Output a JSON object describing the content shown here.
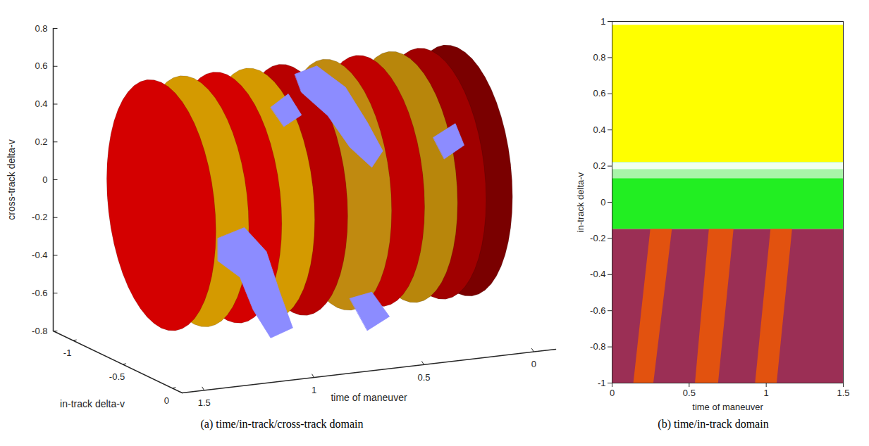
{
  "chart_data": [
    {
      "type": "isosurface",
      "caption": "(a) time/in-track/cross-track domain",
      "x_label": "time of maneuver",
      "y_label": "in-track delta-v",
      "z_label": "cross-track delta-v",
      "xlim": [
        -0.1,
        1.6
      ],
      "xticks": [
        0,
        0.5,
        1,
        1.5
      ],
      "ylim": [
        -1.2,
        0.1
      ],
      "yticks": [
        -1,
        -0.5,
        0
      ],
      "zlim": [
        -0.8,
        0.8
      ],
      "zticks": [
        -0.8,
        -0.6,
        -0.4,
        -0.2,
        0,
        0.2,
        0.4,
        0.6,
        0.8
      ],
      "surfaces": [
        {
          "time": 0.05,
          "in_track": -0.55,
          "cross_track": 0,
          "in_track_radius": 0.55,
          "cross_track_radius": 0.65,
          "color": "#7a0000"
        },
        {
          "time": 0.17,
          "in_track": -0.55,
          "cross_track": 0,
          "in_track_radius": 0.55,
          "cross_track_radius": 0.65,
          "color": "#a00000"
        },
        {
          "time": 0.3,
          "in_track": -0.55,
          "cross_track": 0,
          "in_track_radius": 0.55,
          "cross_track_radius": 0.65,
          "color": "#b8860b"
        },
        {
          "time": 0.45,
          "in_track": -0.55,
          "cross_track": 0,
          "in_track_radius": 0.55,
          "cross_track_radius": 0.65,
          "color": "#c00000"
        },
        {
          "time": 0.6,
          "in_track": -0.55,
          "cross_track": 0,
          "in_track_radius": 0.55,
          "cross_track_radius": 0.65,
          "color": "#c08a10"
        },
        {
          "time": 0.8,
          "in_track": -0.55,
          "cross_track": 0,
          "in_track_radius": 0.55,
          "cross_track_radius": 0.65,
          "color": "#b80000"
        },
        {
          "time": 0.95,
          "in_track": -0.55,
          "cross_track": 0,
          "in_track_radius": 0.55,
          "cross_track_radius": 0.65,
          "color": "#d49a00"
        },
        {
          "time": 1.1,
          "in_track": -0.55,
          "cross_track": 0,
          "in_track_radius": 0.55,
          "cross_track_radius": 0.65,
          "color": "#d40000"
        },
        {
          "time": 1.25,
          "in_track": -0.55,
          "cross_track": 0,
          "in_track_radius": 0.55,
          "cross_track_radius": 0.65,
          "color": "#d49a00"
        },
        {
          "time": 1.4,
          "in_track": -0.55,
          "cross_track": 0,
          "in_track_radius": 0.55,
          "cross_track_radius": 0.65,
          "color": "#d40000"
        }
      ],
      "patches": {
        "color": "#8c8cff",
        "polygons": [
          [
            [
              0.95,
              -0.2,
              0.72
            ],
            [
              0.85,
              -0.2,
              0.75
            ],
            [
              0.72,
              -0.2,
              0.62
            ],
            [
              0.62,
              -0.2,
              0.42
            ],
            [
              0.55,
              -0.2,
              0.26
            ],
            [
              0.6,
              -0.2,
              0.18
            ],
            [
              0.7,
              -0.2,
              0.3
            ],
            [
              0.8,
              -0.2,
              0.48
            ],
            [
              0.92,
              -0.2,
              0.62
            ]
          ],
          [
            [
              1.3,
              -0.2,
              -0.1
            ],
            [
              1.18,
              -0.2,
              -0.06
            ],
            [
              1.08,
              -0.2,
              -0.2
            ],
            [
              1.02,
              -0.2,
              -0.42
            ],
            [
              0.96,
              -0.2,
              -0.62
            ],
            [
              1.06,
              -0.2,
              -0.66
            ],
            [
              1.14,
              -0.2,
              -0.5
            ],
            [
              1.2,
              -0.2,
              -0.32
            ],
            [
              1.3,
              -0.2,
              -0.22
            ]
          ],
          [
            [
              1.06,
              -0.2,
              0.56
            ],
            [
              0.98,
              -0.2,
              0.62
            ],
            [
              0.92,
              -0.2,
              0.5
            ],
            [
              1.0,
              -0.2,
              0.45
            ]
          ],
          [
            [
              0.32,
              -0.2,
              0.3
            ],
            [
              0.22,
              -0.2,
              0.36
            ],
            [
              0.18,
              -0.2,
              0.24
            ],
            [
              0.27,
              -0.2,
              0.18
            ]
          ],
          [
            [
              0.7,
              -0.2,
              -0.5
            ],
            [
              0.6,
              -0.2,
              -0.48
            ],
            [
              0.52,
              -0.2,
              -0.62
            ],
            [
              0.62,
              -0.2,
              -0.68
            ]
          ]
        ]
      }
    },
    {
      "type": "region",
      "caption": "(b) time/in-track domain",
      "x_label": "time of maneuver",
      "y_label": "in-track delta-v",
      "xlim": [
        0,
        1.5
      ],
      "xticks": [
        0,
        0.5,
        1,
        1.5
      ],
      "ylim": [
        -1,
        1
      ],
      "yticks": [
        -1,
        -0.8,
        -0.6,
        -0.4,
        -0.2,
        0,
        0.2,
        0.4,
        0.6,
        0.8,
        1
      ],
      "regions": [
        {
          "color": "#ffff00",
          "polygon": [
            [
              0,
              0.22
            ],
            [
              1.5,
              0.22
            ],
            [
              1.5,
              0.98
            ],
            [
              0,
              0.98
            ]
          ]
        },
        {
          "color": "#22ee22",
          "polygon": [
            [
              0,
              -0.15
            ],
            [
              1.5,
              -0.15
            ],
            [
              1.5,
              0.22
            ],
            [
              0,
              0.22
            ]
          ]
        },
        {
          "color": "#a8f5a8",
          "polygon": [
            [
              0,
              0.13
            ],
            [
              1.5,
              0.13
            ],
            [
              1.5,
              0.18
            ],
            [
              0,
              0.18
            ]
          ]
        },
        {
          "color": "#f0fff0",
          "polygon": [
            [
              0,
              0.18
            ],
            [
              1.5,
              0.18
            ],
            [
              1.5,
              0.22
            ],
            [
              0,
              0.22
            ]
          ]
        },
        {
          "color": "#9b2f55",
          "polygon": [
            [
              0,
              -1
            ],
            [
              1.5,
              -1
            ],
            [
              1.5,
              -0.15
            ],
            [
              0,
              -0.15
            ]
          ]
        },
        {
          "color": "#e2520f",
          "polygon": [
            [
              0.14,
              -1
            ],
            [
              0.27,
              -1
            ],
            [
              0.39,
              -0.15
            ],
            [
              0.25,
              -0.15
            ]
          ]
        },
        {
          "color": "#e2520f",
          "polygon": [
            [
              0.54,
              -1
            ],
            [
              0.69,
              -1
            ],
            [
              0.79,
              -0.15
            ],
            [
              0.63,
              -0.15
            ]
          ]
        },
        {
          "color": "#e2520f",
          "polygon": [
            [
              0.93,
              -1
            ],
            [
              1.07,
              -1
            ],
            [
              1.17,
              -0.15
            ],
            [
              1.03,
              -0.15
            ]
          ]
        }
      ]
    }
  ]
}
